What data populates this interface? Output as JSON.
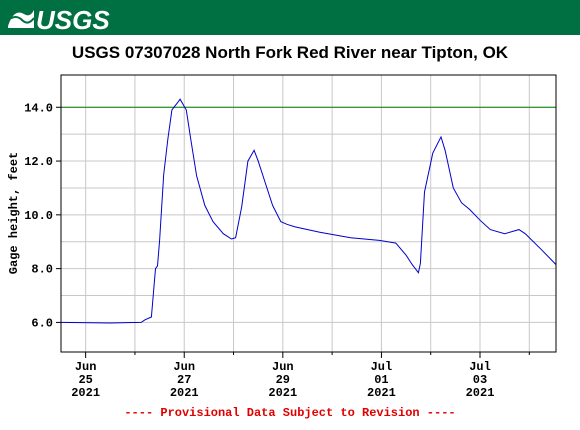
{
  "header": {
    "logo": "USGS"
  },
  "chart_data": {
    "type": "line",
    "title": "USGS 07307028 North Fork Red River near Tipton, OK",
    "ylabel": "Gage height, feet",
    "footer": "---- Provisional Data Subject to Revision ----",
    "xlim": [
      "2021-06-24T12:00",
      "2021-07-04T13:00"
    ],
    "xticks": [
      {
        "value": "2021-06-25T00:00",
        "label": [
          "Jun",
          "25",
          "2021"
        ]
      },
      {
        "value": "2021-06-26T00:00"
      },
      {
        "value": "2021-06-27T00:00",
        "label": [
          "Jun",
          "27",
          "2021"
        ]
      },
      {
        "value": "2021-06-28T00:00"
      },
      {
        "value": "2021-06-29T00:00",
        "label": [
          "Jun",
          "29",
          "2021"
        ]
      },
      {
        "value": "2021-06-30T00:00"
      },
      {
        "value": "2021-07-01T00:00",
        "label": [
          "Jul",
          "01",
          "2021"
        ]
      },
      {
        "value": "2021-07-02T00:00"
      },
      {
        "value": "2021-07-03T00:00",
        "label": [
          "Jul",
          "03",
          "2021"
        ]
      },
      {
        "value": "2021-07-04T00:00"
      }
    ],
    "ylim": [
      4.9,
      15.2
    ],
    "yticks": [
      {
        "value": 6,
        "label": "6.0"
      },
      {
        "value": 8,
        "label": "8.0"
      },
      {
        "value": 10,
        "label": "10.0"
      },
      {
        "value": 12,
        "label": "12.0"
      },
      {
        "value": 14,
        "label": "14.0"
      }
    ],
    "minor_yticks": [
      7,
      9,
      11,
      13
    ],
    "grid": true,
    "reference_line": {
      "value": 14,
      "color": "#008000"
    },
    "series": [
      {
        "name": "Gage height",
        "color": "#0000cc",
        "x": [
          "2021-06-24T12:00",
          "2021-06-25T12:00",
          "2021-06-26T03:00",
          "2021-06-26T05:00",
          "2021-06-26T08:00",
          "2021-06-26T10:00",
          "2021-06-26T11:00",
          "2021-06-26T12:00",
          "2021-06-26T14:00",
          "2021-06-26T16:00",
          "2021-06-26T18:00",
          "2021-06-26T21:00",
          "2021-06-26T22:00",
          "2021-06-27T01:00",
          "2021-06-27T03:00",
          "2021-06-27T06:00",
          "2021-06-27T10:00",
          "2021-06-27T14:00",
          "2021-06-27T19:00",
          "2021-06-27T23:00",
          "2021-06-28T01:00",
          "2021-06-28T04:00",
          "2021-06-28T07:00",
          "2021-06-28T10:00",
          "2021-06-28T12:00",
          "2021-06-28T15:00",
          "2021-06-28T19:00",
          "2021-06-28T23:00",
          "2021-06-29T02:00",
          "2021-06-29T06:00",
          "2021-06-29T18:00",
          "2021-06-30T09:00",
          "2021-06-30T23:00",
          "2021-07-01T07:00",
          "2021-07-01T12:00",
          "2021-07-01T15:00",
          "2021-07-01T18:00",
          "2021-07-01T19:00",
          "2021-07-01T21:00",
          "2021-07-02T01:00",
          "2021-07-02T05:00",
          "2021-07-02T07:00",
          "2021-07-02T11:00",
          "2021-07-02T15:00",
          "2021-07-02T19:00",
          "2021-07-03T00:00",
          "2021-07-03T05:00",
          "2021-07-03T12:00",
          "2021-07-03T19:00",
          "2021-07-03T22:00",
          "2021-07-04T06:00",
          "2021-07-04T13:00"
        ],
        "values": [
          6.0,
          5.98,
          6.0,
          6.1,
          6.2,
          8.0,
          8.1,
          9.05,
          11.5,
          12.8,
          13.9,
          14.2,
          14.3,
          13.9,
          12.9,
          11.45,
          10.35,
          9.75,
          9.3,
          9.1,
          9.15,
          10.3,
          12.0,
          12.4,
          12.0,
          11.3,
          10.35,
          9.75,
          9.65,
          9.55,
          9.35,
          9.15,
          9.05,
          8.95,
          8.5,
          8.15,
          7.85,
          8.2,
          10.85,
          12.3,
          12.9,
          12.4,
          11.0,
          10.45,
          10.2,
          9.8,
          9.45,
          9.3,
          9.45,
          9.3,
          8.7,
          8.15
        ]
      }
    ]
  }
}
